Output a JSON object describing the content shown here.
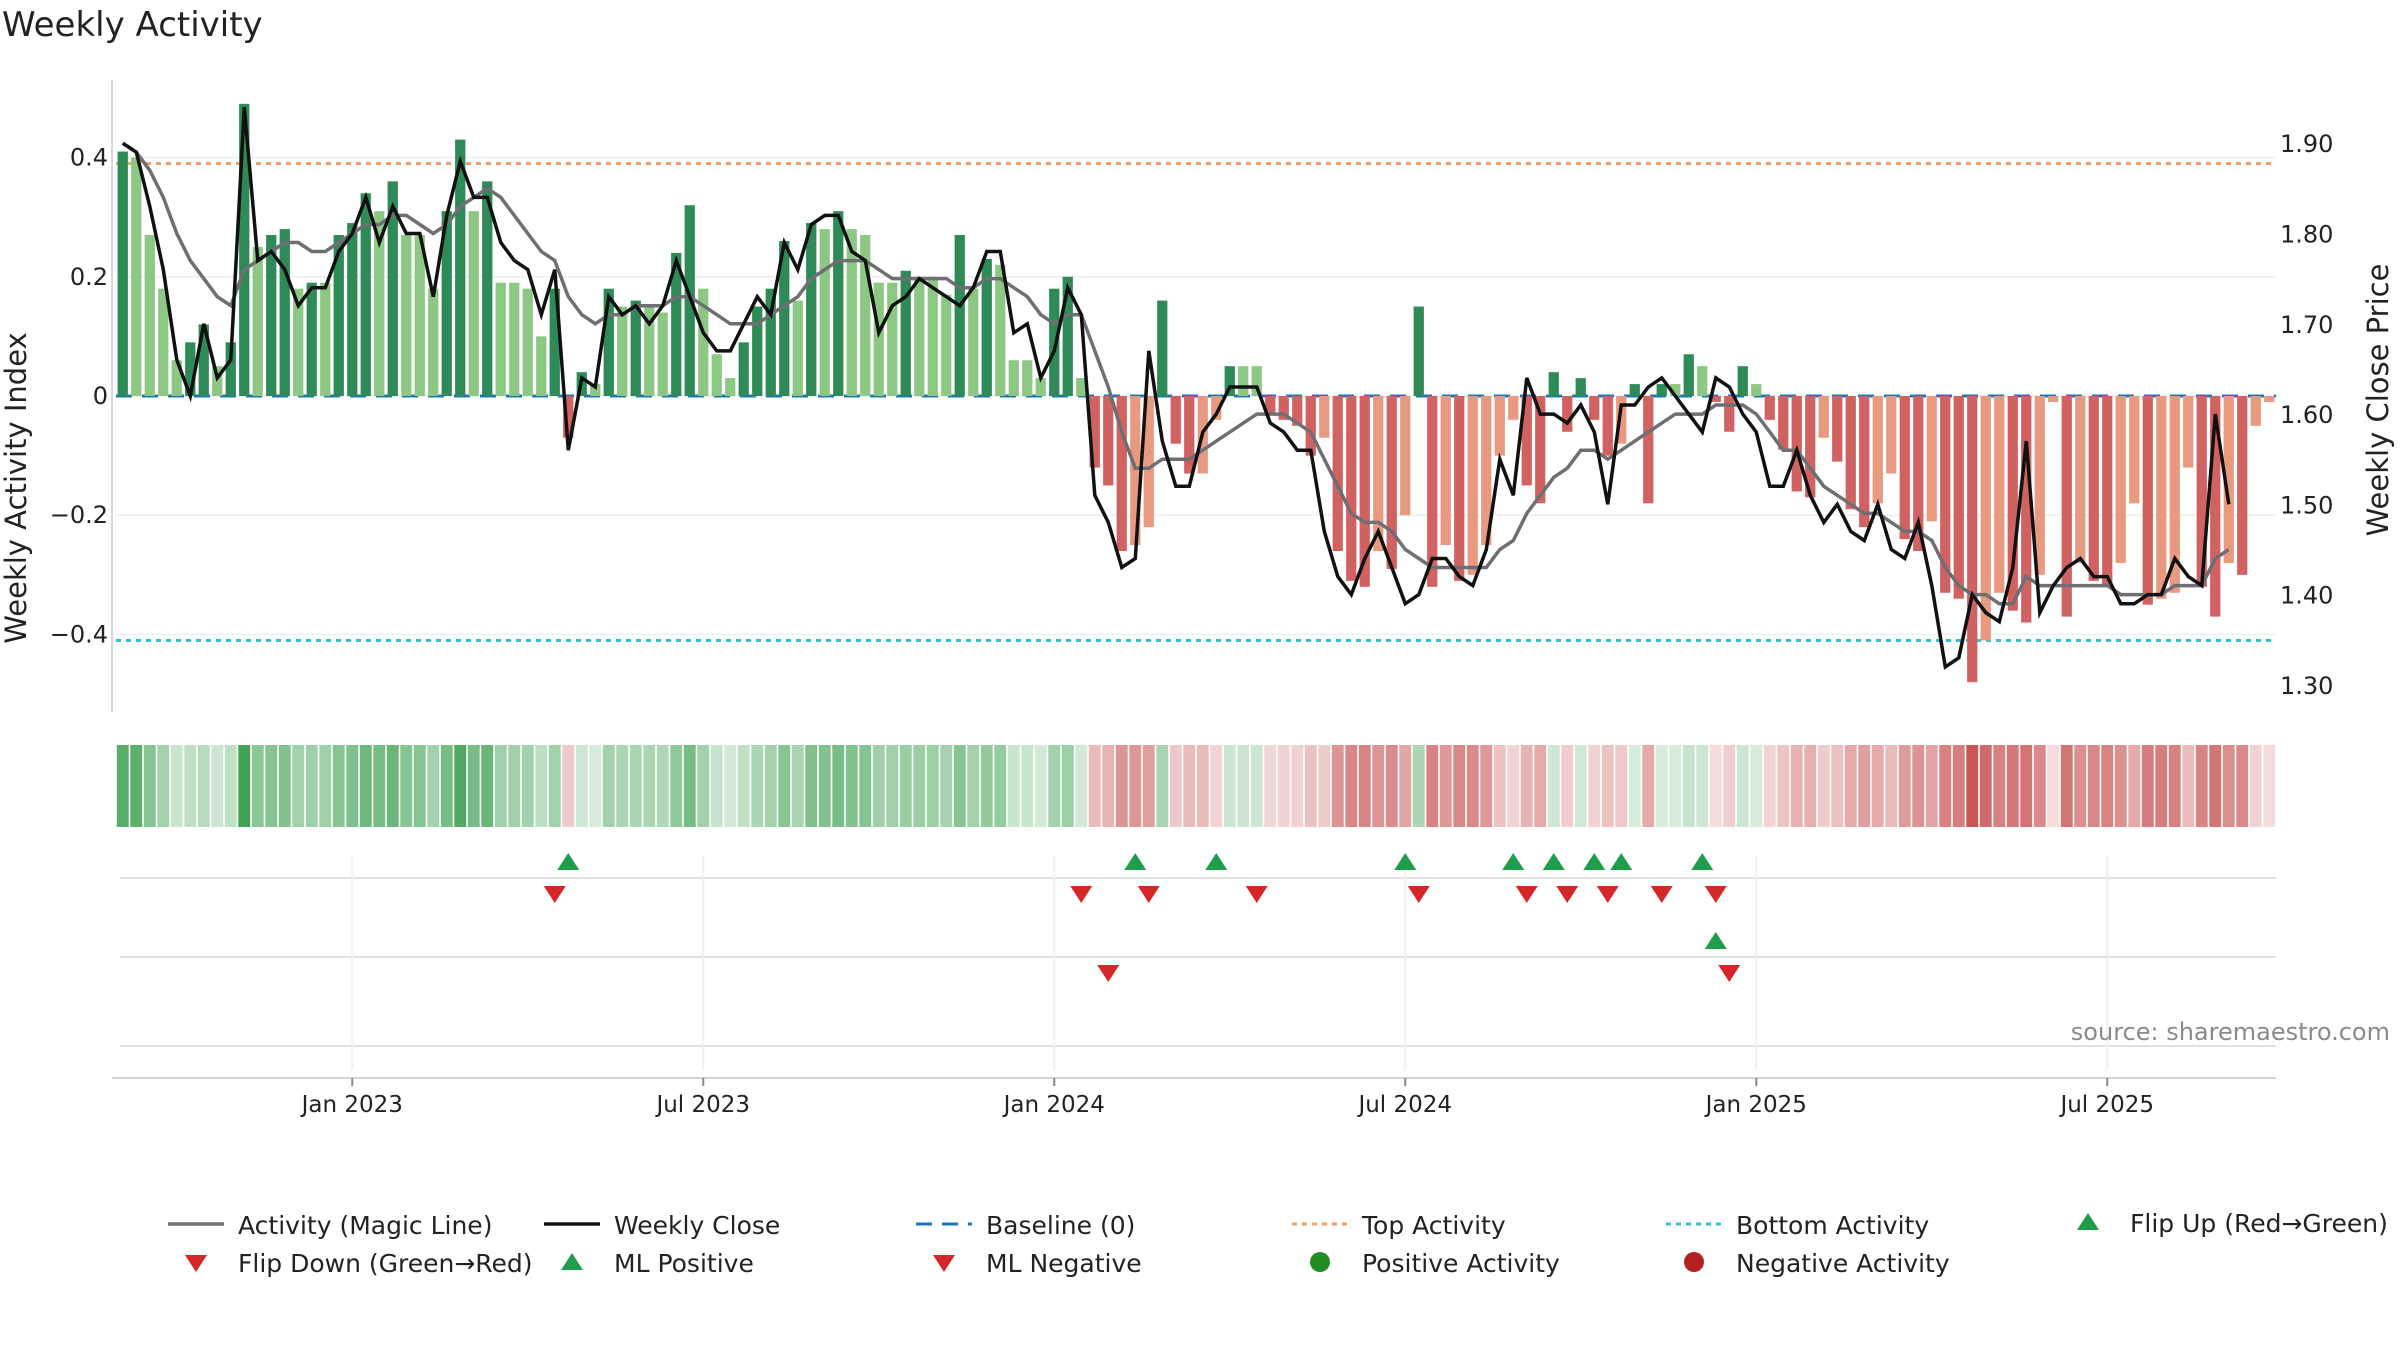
{
  "chart_data": {
    "type": "bar",
    "title": "Weekly Activity",
    "ylabel": "Weekly Activity Index",
    "y2label": "Weekly Close Price",
    "ylim": [
      -0.53,
      0.53
    ],
    "y2lim": [
      1.27,
      1.97
    ],
    "yticks": [
      {
        "v": 0.4,
        "label": "0.4"
      },
      {
        "v": 0.2,
        "label": "0.2"
      },
      {
        "v": 0,
        "label": "0"
      },
      {
        "v": -0.2,
        "label": "−0.2"
      },
      {
        "v": -0.4,
        "label": "−0.4"
      }
    ],
    "y2ticks": [
      {
        "v": 1.9,
        "label": "1.90"
      },
      {
        "v": 1.8,
        "label": "1.80"
      },
      {
        "v": 1.7,
        "label": "1.70"
      },
      {
        "v": 1.6,
        "label": "1.60"
      },
      {
        "v": 1.5,
        "label": "1.50"
      },
      {
        "v": 1.4,
        "label": "1.40"
      },
      {
        "v": 1.3,
        "label": "1.30"
      }
    ],
    "xticks": [
      {
        "i": 17,
        "label": "Jan 2023"
      },
      {
        "i": 43,
        "label": "Jul 2023"
      },
      {
        "i": 69,
        "label": "Jan 2024"
      },
      {
        "i": 95,
        "label": "Jul 2024"
      },
      {
        "i": 121,
        "label": "Jan 2025"
      },
      {
        "i": 147,
        "label": "Jul 2025"
      }
    ],
    "top_activity": 0.39,
    "bottom_activity": -0.41,
    "source": "source: sharemaestro.com",
    "activity": [
      0.41,
      0.4,
      0.27,
      0.18,
      0.06,
      0.09,
      0.12,
      0.05,
      0.09,
      0.49,
      0.25,
      0.27,
      0.28,
      0.18,
      0.19,
      0.19,
      0.27,
      0.29,
      0.34,
      0.31,
      0.36,
      0.27,
      0.27,
      0.18,
      0.31,
      0.43,
      0.31,
      0.36,
      0.19,
      0.19,
      0.18,
      0.1,
      0.18,
      -0.07,
      0.04,
      0.02,
      0.18,
      0.15,
      0.16,
      0.15,
      0.14,
      0.24,
      0.32,
      0.18,
      0.07,
      0.03,
      0.09,
      0.15,
      0.18,
      0.26,
      0.16,
      0.29,
      0.28,
      0.31,
      0.28,
      0.27,
      0.19,
      0.19,
      0.21,
      0.2,
      0.2,
      0.17,
      0.27,
      0.18,
      0.23,
      0.22,
      0.06,
      0.06,
      0.03,
      0.18,
      0.2,
      0.03,
      -0.12,
      -0.15,
      -0.26,
      -0.25,
      -0.22,
      0.16,
      -0.08,
      -0.13,
      -0.13,
      -0.04,
      0.05,
      0.05,
      0.05,
      -0.03,
      -0.04,
      -0.05,
      -0.1,
      -0.07,
      -0.26,
      -0.31,
      -0.32,
      -0.26,
      -0.29,
      -0.2,
      0.15,
      -0.32,
      -0.25,
      -0.31,
      -0.3,
      -0.25,
      -0.1,
      -0.04,
      -0.15,
      -0.18,
      0.04,
      -0.06,
      0.03,
      -0.04,
      -0.1,
      -0.08,
      0.02,
      -0.18,
      0.02,
      0.02,
      0.07,
      0.05,
      -0.01,
      -0.06,
      0.05,
      0.02,
      -0.04,
      -0.09,
      -0.16,
      -0.17,
      -0.07,
      -0.11,
      -0.19,
      -0.22,
      -0.18,
      -0.13,
      -0.24,
      -0.26,
      -0.21,
      -0.33,
      -0.34,
      -0.48,
      -0.41,
      -0.33,
      -0.36,
      -0.38,
      -0.3,
      -0.01,
      -0.37,
      -0.28,
      -0.31,
      -0.32,
      -0.28,
      -0.18,
      -0.35,
      -0.34,
      -0.33,
      -0.12,
      -0.32,
      -0.37,
      -0.28,
      -0.3,
      -0.05,
      -0.01
    ],
    "close": [
      1.9,
      1.89,
      1.83,
      1.76,
      1.66,
      1.62,
      1.7,
      1.64,
      1.66,
      1.94,
      1.77,
      1.78,
      1.76,
      1.72,
      1.74,
      1.74,
      1.78,
      1.8,
      1.84,
      1.79,
      1.83,
      1.8,
      1.8,
      1.73,
      1.82,
      1.88,
      1.84,
      1.84,
      1.79,
      1.77,
      1.76,
      1.71,
      1.76,
      1.56,
      1.64,
      1.63,
      1.73,
      1.71,
      1.72,
      1.7,
      1.72,
      1.77,
      1.73,
      1.69,
      1.67,
      1.67,
      1.7,
      1.73,
      1.71,
      1.79,
      1.76,
      1.81,
      1.82,
      1.82,
      1.78,
      1.77,
      1.69,
      1.72,
      1.73,
      1.75,
      1.74,
      1.73,
      1.72,
      1.74,
      1.78,
      1.78,
      1.69,
      1.7,
      1.64,
      1.67,
      1.74,
      1.71,
      1.51,
      1.48,
      1.43,
      1.44,
      1.67,
      1.57,
      1.52,
      1.52,
      1.58,
      1.6,
      1.63,
      1.63,
      1.63,
      1.59,
      1.58,
      1.56,
      1.56,
      1.47,
      1.42,
      1.4,
      1.44,
      1.47,
      1.43,
      1.39,
      1.4,
      1.44,
      1.44,
      1.42,
      1.41,
      1.45,
      1.55,
      1.51,
      1.64,
      1.6,
      1.6,
      1.59,
      1.61,
      1.58,
      1.5,
      1.61,
      1.61,
      1.63,
      1.64,
      1.62,
      1.6,
      1.58,
      1.64,
      1.63,
      1.6,
      1.58,
      1.52,
      1.52,
      1.56,
      1.51,
      1.48,
      1.5,
      1.47,
      1.46,
      1.5,
      1.45,
      1.44,
      1.48,
      1.41,
      1.32,
      1.33,
      1.4,
      1.38,
      1.37,
      1.43,
      1.57,
      1.38,
      1.41,
      1.43,
      1.44,
      1.42,
      1.42,
      1.39,
      1.39,
      1.4,
      1.4,
      1.44,
      1.42,
      1.41,
      1.6,
      1.5
    ],
    "magic": [
      1.9,
      1.89,
      1.87,
      1.84,
      1.8,
      1.77,
      1.75,
      1.73,
      1.72,
      1.76,
      1.77,
      1.78,
      1.79,
      1.79,
      1.78,
      1.78,
      1.79,
      1.8,
      1.81,
      1.81,
      1.82,
      1.82,
      1.81,
      1.8,
      1.81,
      1.83,
      1.84,
      1.85,
      1.84,
      1.82,
      1.8,
      1.78,
      1.77,
      1.73,
      1.71,
      1.7,
      1.71,
      1.71,
      1.72,
      1.72,
      1.72,
      1.73,
      1.73,
      1.72,
      1.71,
      1.7,
      1.7,
      1.7,
      1.71,
      1.72,
      1.73,
      1.75,
      1.76,
      1.77,
      1.77,
      1.77,
      1.76,
      1.75,
      1.75,
      1.75,
      1.75,
      1.75,
      1.74,
      1.74,
      1.75,
      1.75,
      1.74,
      1.73,
      1.71,
      1.7,
      1.71,
      1.71,
      1.67,
      1.63,
      1.58,
      1.54,
      1.54,
      1.55,
      1.55,
      1.55,
      1.56,
      1.57,
      1.58,
      1.59,
      1.6,
      1.6,
      1.6,
      1.59,
      1.58,
      1.55,
      1.52,
      1.49,
      1.48,
      1.48,
      1.47,
      1.45,
      1.44,
      1.43,
      1.43,
      1.43,
      1.43,
      1.43,
      1.45,
      1.46,
      1.49,
      1.51,
      1.53,
      1.54,
      1.56,
      1.56,
      1.55,
      1.56,
      1.57,
      1.58,
      1.59,
      1.6,
      1.6,
      1.6,
      1.61,
      1.61,
      1.61,
      1.6,
      1.58,
      1.56,
      1.56,
      1.54,
      1.52,
      1.51,
      1.5,
      1.49,
      1.49,
      1.48,
      1.47,
      1.47,
      1.46,
      1.43,
      1.41,
      1.4,
      1.4,
      1.39,
      1.39,
      1.42,
      1.41,
      1.41,
      1.41,
      1.41,
      1.41,
      1.41,
      1.4,
      1.4,
      1.4,
      1.4,
      1.41,
      1.41,
      1.41,
      1.44,
      1.45
    ],
    "flip_up_row1": [
      33,
      75,
      81,
      95,
      103,
      106,
      109,
      111,
      117
    ],
    "flip_down_row1": [
      32,
      71,
      76,
      84,
      96,
      104,
      107,
      110,
      114,
      118
    ],
    "ml_positive_row2": [
      118
    ],
    "ml_negative_row2": [
      73,
      119
    ]
  },
  "legend": [
    {
      "label": "Activity (Magic Line)",
      "symbol": "line",
      "color": "#6e6e73"
    },
    {
      "label": "Weekly Close",
      "symbol": "line",
      "color": "#111111"
    },
    {
      "label": "Baseline (0)",
      "symbol": "dash",
      "color": "#1f77b4"
    },
    {
      "label": "Top Activity",
      "symbol": "dot",
      "color": "#f2a06b"
    },
    {
      "label": "Bottom Activity",
      "symbol": "dot",
      "color": "#2ec4d6"
    },
    {
      "label": "Flip Up (Red→Green)",
      "symbol": "tri-up",
      "color": "#1e9e4a"
    },
    {
      "label": "Flip Down (Green→Red)",
      "symbol": "tri-down",
      "color": "#d62728"
    },
    {
      "label": "ML Positive",
      "symbol": "tri-up",
      "color": "#1e9e4a"
    },
    {
      "label": "ML Negative",
      "symbol": "tri-down",
      "color": "#d62728"
    },
    {
      "label": "Positive Activity",
      "symbol": "circle",
      "color": "#228b22"
    },
    {
      "label": "Negative Activity",
      "symbol": "circle",
      "color": "#b22222"
    }
  ],
  "colors": {
    "pos_dark": "#2e8b57",
    "pos_light": "#8cc784",
    "neg_dark": "#d06262",
    "neg_light": "#e89a80",
    "magic": "#6e6e73",
    "close": "#111111",
    "baseline": "#1f77b4",
    "top": "#f2a06b",
    "bottom": "#2ec4d6",
    "up": "#1e9e4a",
    "down": "#d62728"
  }
}
